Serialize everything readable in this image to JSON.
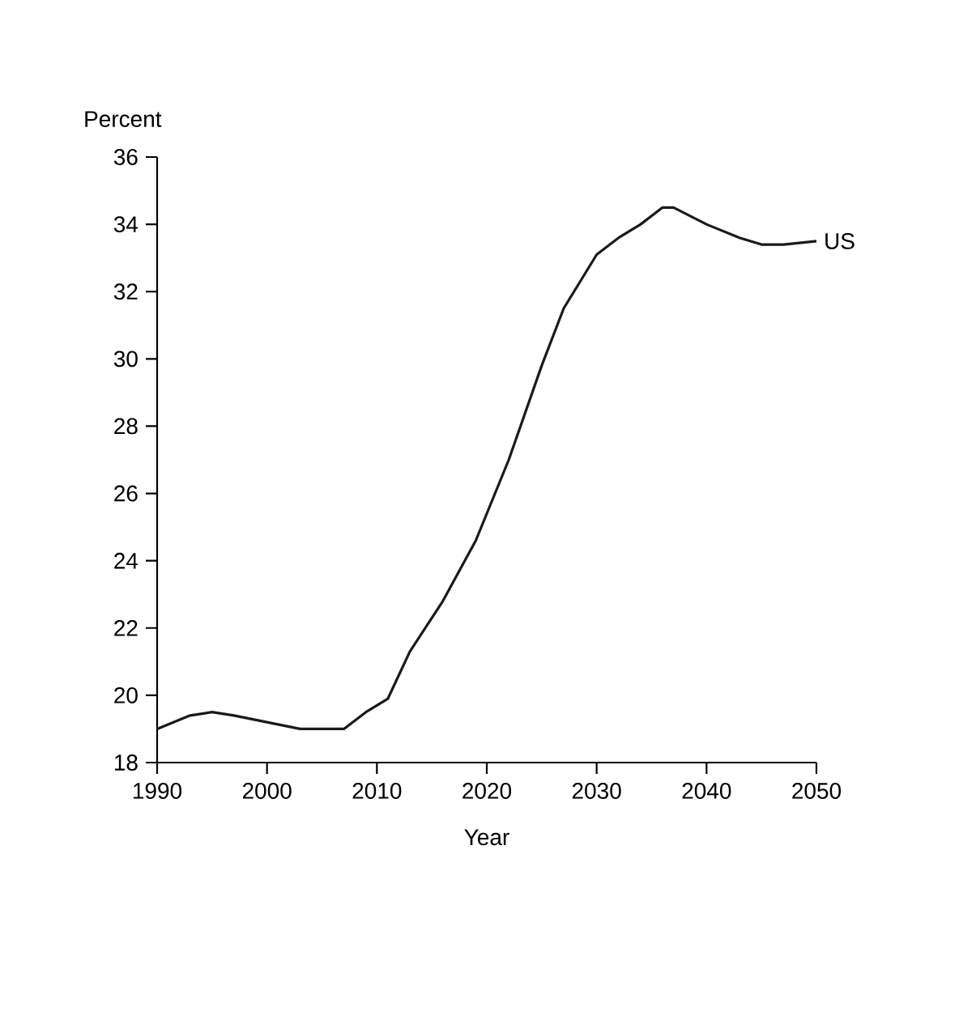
{
  "chart_data": {
    "type": "line",
    "xlabel": "Year",
    "ylabel": "Percent",
    "x": [
      1990,
      1993,
      1995,
      1997,
      2000,
      2003,
      2007,
      2009,
      2011,
      2013,
      2016,
      2019,
      2022,
      2025,
      2027,
      2030,
      2032,
      2034,
      2036,
      2037,
      2040,
      2043,
      2045,
      2047,
      2050
    ],
    "series": [
      {
        "name": "US",
        "color": "#1a1a1a",
        "values": [
          19.0,
          19.4,
          19.5,
          19.4,
          19.2,
          19.0,
          19.0,
          19.5,
          19.9,
          21.3,
          22.8,
          24.6,
          27.0,
          29.8,
          31.5,
          33.1,
          33.6,
          34.0,
          34.5,
          34.5,
          34.0,
          33.6,
          33.4,
          33.4,
          33.5
        ]
      }
    ],
    "xlim": [
      1990,
      2050
    ],
    "ylim": [
      18,
      36
    ],
    "xticks": [
      1990,
      2000,
      2010,
      2020,
      2030,
      2040,
      2050
    ],
    "yticks": [
      18,
      20,
      22,
      24,
      26,
      28,
      30,
      32,
      34,
      36
    ],
    "line_style": "solid"
  }
}
